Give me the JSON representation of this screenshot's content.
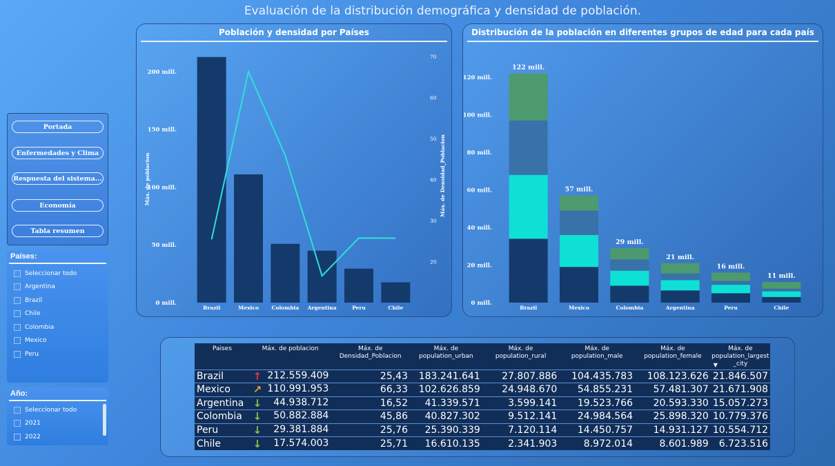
{
  "page": {
    "title": "Evaluación de la distribución demográfica y densidad de población."
  },
  "nav": {
    "buttons": [
      "Portada",
      "Enfermedades y Clima",
      "Respuesta del sistema...",
      "Economía",
      "Tabla resumen"
    ]
  },
  "slicer_paises": {
    "title": "Países:",
    "items": [
      "Seleccionar todo",
      "Argentina",
      "Brazil",
      "Chile",
      "Colombia",
      "Mexico",
      "Peru"
    ]
  },
  "slicer_anio": {
    "title": "Año:",
    "items": [
      "Seleccionar todo",
      "2021",
      "2022"
    ]
  },
  "colors": {
    "bar": "#143a6c",
    "line": "#2fe0d8",
    "seg1": "#143a6c",
    "seg2": "#0fe0d6",
    "seg3": "#3872a8",
    "seg4": "#4d9a6e",
    "arrow_up": "#e53935",
    "arrow_upright": "#f0a030",
    "arrow_down": "#8bc34a"
  },
  "chart_data": [
    {
      "type": "bar",
      "title": "Población y densidad por Países",
      "categories": [
        "Brazil",
        "Mexico",
        "Colombia",
        "Argentina",
        "Peru",
        "Chile"
      ],
      "series": [
        {
          "name": "Máx. de poblacion",
          "type": "bar",
          "axis": "left",
          "values": [
            212559409,
            110991953,
            50882884,
            44938712,
            29381884,
            17574003
          ]
        },
        {
          "name": "Máx. de Densidad_Poblacion",
          "type": "line",
          "axis": "right",
          "values": [
            25.43,
            66.33,
            45.86,
            16.52,
            25.76,
            25.71
          ]
        }
      ],
      "ylabel": "Máx. de poblacion",
      "ylabel_right": "Máx. de Densidad_Poblacion",
      "yticks": [
        "0 mill.",
        "50 mill.",
        "100 mill.",
        "150 mill.",
        "200 mill."
      ],
      "ylim": [
        0,
        213000000
      ],
      "yticks_right": [
        "20",
        "30",
        "40",
        "50",
        "60",
        "70"
      ],
      "ylim_right": [
        10,
        70
      ]
    },
    {
      "type": "bar",
      "stacked": true,
      "title": "Distribución de la población en diferentes grupos de edad para cada país",
      "categories": [
        "Brazil",
        "Mexico",
        "Colombia",
        "Argentina",
        "Peru",
        "Chile"
      ],
      "series": [
        {
          "values": [
            34,
            19,
            9,
            6.5,
            5,
            3
          ]
        },
        {
          "values": [
            34,
            17,
            8,
            5.5,
            4.5,
            3
          ]
        },
        {
          "values": [
            29,
            13,
            6,
            3.5,
            2,
            1.5
          ]
        },
        {
          "values": [
            25,
            8,
            6,
            5.5,
            4.5,
            3.5
          ]
        }
      ],
      "totals": [
        122,
        57,
        29,
        21,
        16,
        11
      ],
      "total_labels": [
        "122 mill.",
        "57 mill.",
        "29 mill.",
        "21 mill.",
        "16 mill.",
        "11 mill."
      ],
      "yticks": [
        "0 mill.",
        "20 mill.",
        "40 mill.",
        "60 mill.",
        "80 mill.",
        "100 mill.",
        "120 mill."
      ],
      "ylim": [
        0,
        131
      ]
    }
  ],
  "table": {
    "headers": [
      "Paises",
      "Máx. de poblacion",
      "Máx. de Densidad_Poblacion",
      "Máx. de population_urban",
      "Máx. de population_rural",
      "Máx. de population_male",
      "Máx. de population_female",
      "Máx. de population_largest _city"
    ],
    "rows": [
      {
        "pais": "Brazil",
        "arrow": "up",
        "poblacion": "212.559.409",
        "densidad": "25,43",
        "urban": "183.241.641",
        "rural": "27.807.886",
        "male": "104.435.783",
        "female": "108.123.626",
        "largest": "21.846.507"
      },
      {
        "pais": "Mexico",
        "arrow": "upright",
        "poblacion": "110.991.953",
        "densidad": "66,33",
        "urban": "102.626.859",
        "rural": "24.948.670",
        "male": "54.855.231",
        "female": "57.481.307",
        "largest": "21.671.908"
      },
      {
        "pais": "Argentina",
        "arrow": "down",
        "poblacion": "44.938.712",
        "densidad": "16,52",
        "urban": "41.339.571",
        "rural": "3.599.141",
        "male": "19.523.766",
        "female": "20.593.330",
        "largest": "15.057.273"
      },
      {
        "pais": "Colombia",
        "arrow": "down",
        "poblacion": "50.882.884",
        "densidad": "45,86",
        "urban": "40.827.302",
        "rural": "9.512.141",
        "male": "24.984.564",
        "female": "25.898.320",
        "largest": "10.779.376"
      },
      {
        "pais": "Peru",
        "arrow": "down",
        "poblacion": "29.381.884",
        "densidad": "25,76",
        "urban": "25.390.339",
        "rural": "7.120.114",
        "male": "14.450.757",
        "female": "14.931.127",
        "largest": "10.554.712"
      },
      {
        "pais": "Chile",
        "arrow": "down",
        "poblacion": "17.574.003",
        "densidad": "25,71",
        "urban": "16.610.135",
        "rural": "2.341.903",
        "male": "8.972.014",
        "female": "8.601.989",
        "largest": "6.723.516"
      }
    ]
  }
}
